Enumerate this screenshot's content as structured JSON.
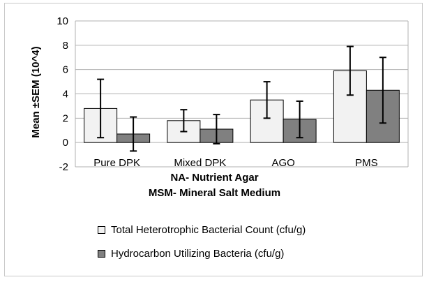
{
  "chart_data": {
    "type": "bar",
    "categories": [
      "Pure DPK",
      "Mixed DPK",
      "AGO",
      "PMS"
    ],
    "series": [
      {
        "name": "Total Heterotrophic Bacterial Count (cfu/g)",
        "values": [
          2.8,
          1.8,
          3.5,
          5.9
        ],
        "errors": [
          2.4,
          0.9,
          1.5,
          2.0
        ],
        "color": "#f2f2f2"
      },
      {
        "name": "Hydrocarbon Utilizing  Bacteria (cfu/g)",
        "values": [
          0.7,
          1.1,
          1.9,
          4.3
        ],
        "errors": [
          1.4,
          1.2,
          1.5,
          2.7
        ],
        "color": "#808080"
      }
    ],
    "title": "",
    "xlabel": "",
    "ylabel": "Mean ±SEM (10^4)",
    "ylim": [
      -2,
      10
    ],
    "yticks": [
      "-2",
      "0",
      "2",
      "4",
      "6",
      "8",
      "10"
    ],
    "grid": true,
    "legend_position": "bottom-left"
  },
  "notes": {
    "line1": "NA- Nutrient Agar",
    "line2": "MSM- Mineral Salt Medium"
  }
}
